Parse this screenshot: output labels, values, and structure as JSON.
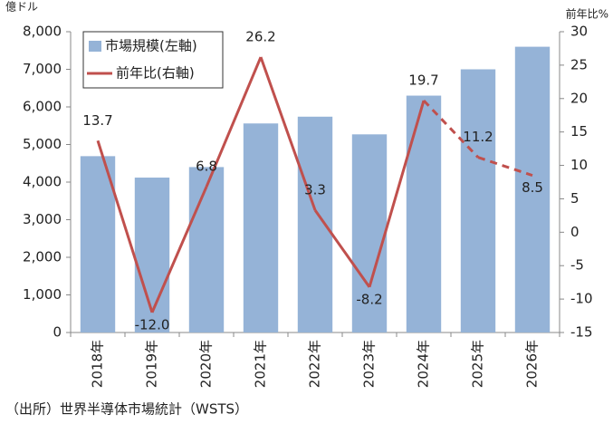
{
  "chart_data": {
    "type": "bar_line",
    "y_axis_label": "億ドル",
    "y2_axis_label": "前年比%",
    "source": "（出所）世界半導体市場統計（WSTS）",
    "categories": [
      "2018年",
      "2019年",
      "2020年",
      "2021年",
      "2022年",
      "2023年",
      "2024年",
      "2025年",
      "2026年"
    ],
    "series": [
      {
        "name": "市場規模(左軸)",
        "type": "bar",
        "color": "#95b3d7",
        "values": [
          4690,
          4120,
          4400,
          5560,
          5740,
          5270,
          6300,
          7000,
          7600
        ]
      },
      {
        "name": "前年比(右軸)",
        "type": "line",
        "axis": "y2",
        "color": "#c0504d",
        "values": [
          13.7,
          -12,
          6.8,
          26.2,
          3.3,
          -8.2,
          19.7,
          11.2,
          8.5
        ],
        "value_labels": [
          "13.7",
          "-12.0",
          "6.8",
          "26.2",
          "3.3",
          "-8.2",
          "19.7",
          "11.2",
          "8.5"
        ],
        "segment_styles": [
          "solid",
          "solid",
          "solid",
          "solid",
          "solid",
          "solid",
          "dashed",
          "dashed"
        ]
      }
    ],
    "ylim": [
      0,
      8000
    ],
    "yticks": [
      0,
      {
        "value": 1000,
        "label": "1,000"
      },
      {
        "value": 2000,
        "label": "2,000"
      },
      {
        "value": 3000,
        "label": "3,000"
      },
      {
        "value": 4000,
        "label": "4,000"
      },
      {
        "value": 5000,
        "label": "5,000"
      },
      {
        "value": 6000,
        "label": "6,000"
      },
      {
        "value": 7000,
        "label": "7,000"
      },
      {
        "value": 8000,
        "label": "8,000"
      }
    ],
    "y2lim": [
      -15,
      30
    ],
    "y2ticks": [
      -15,
      -10,
      -5,
      0,
      5,
      10,
      15,
      20,
      25,
      30
    ],
    "grid": false,
    "legend": "top-left"
  }
}
